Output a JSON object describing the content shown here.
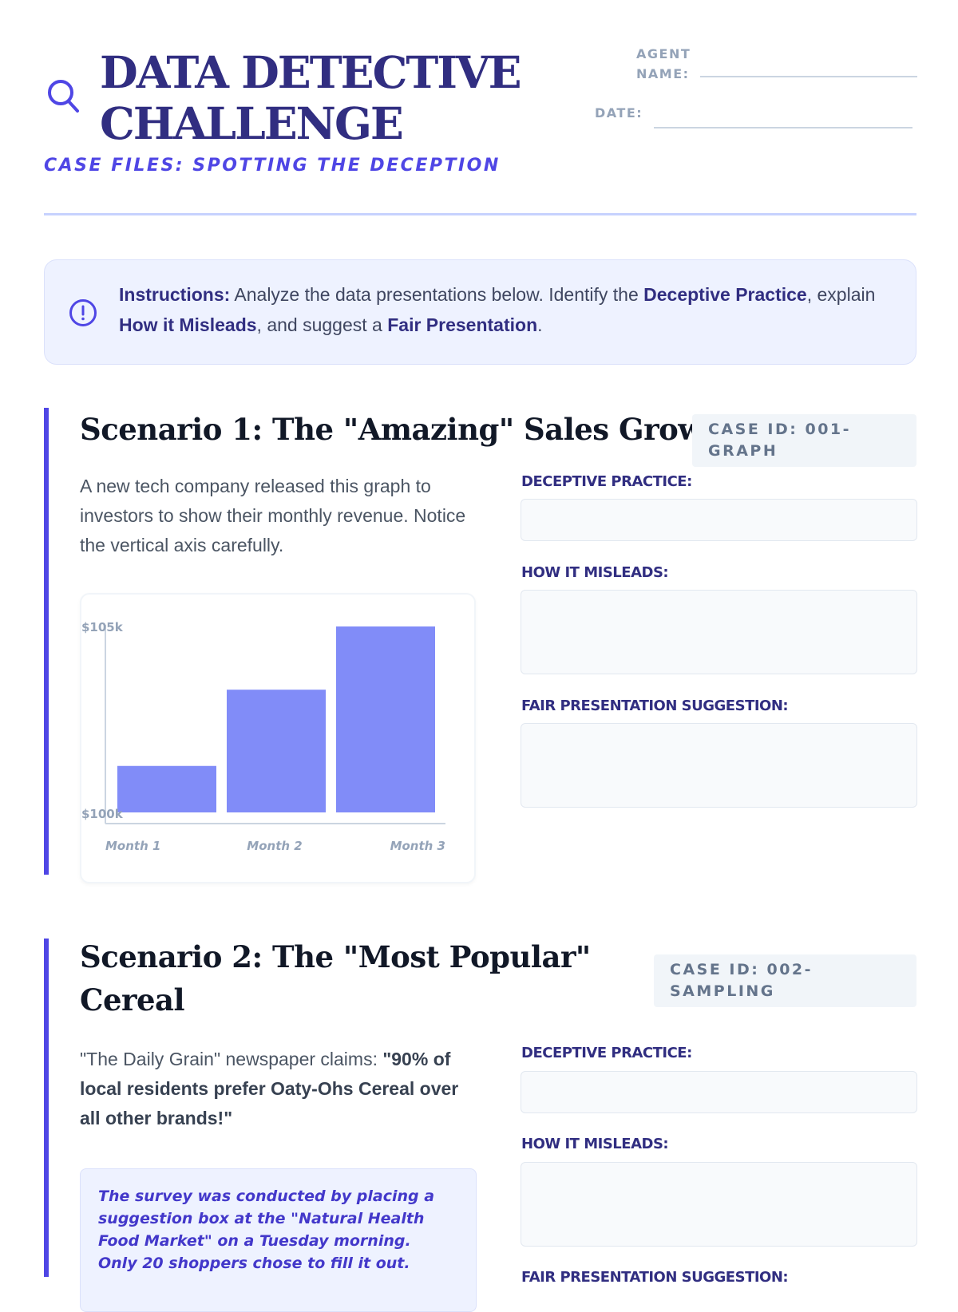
{
  "header": {
    "title": "DATA DETECTIVE CHALLENGE",
    "subtitle": "CASE FILES: SPOTTING THE DECEPTION",
    "agent_label": "AGENT NAME:",
    "date_label": "DATE:",
    "icon": "search-icon"
  },
  "instructions": {
    "icon": "alert-circle-icon",
    "lead": "Instructions:",
    "t1": " Analyze the data presentations below. Identify the ",
    "b1": "Deceptive Practice",
    "t2": ", explain ",
    "b2": "How it Misleads",
    "t3": ", and suggest a ",
    "b3": "Fair Presentation",
    "t4": "."
  },
  "scenarios": [
    {
      "title": "Scenario 1: The \"Amazing\" Sales Growth",
      "case_id": "CASE ID: 001-GRAPH",
      "description": "A new tech company released this graph to investors to show their monthly revenue. Notice the vertical axis carefully.",
      "fields": {
        "deceptive": "DECEPTIVE PRACTICE:",
        "misleads": "HOW IT MISLEADS:",
        "fair": "FAIR PRESENTATION SUGGESTION:"
      }
    },
    {
      "title": "Scenario 2: The \"Most Popular\" Cereal",
      "case_id": "CASE ID: 002-SAMPLING",
      "desc_plain": "\"The Daily Grain\" newspaper claims: ",
      "desc_bold": "\"90% of local residents prefer Oaty-Ohs Cereal over all other brands!\"",
      "note": "The survey was conducted by placing a suggestion box at the \"Natural Health Food Market\" on a Tuesday morning. Only 20 shoppers chose to fill it out.",
      "fields": {
        "deceptive": "DECEPTIVE PRACTICE:",
        "misleads": "HOW IT MISLEADS:",
        "fair": "FAIR PRESENTATION SUGGESTION:"
      }
    }
  ],
  "chart_data": {
    "type": "bar",
    "categories": [
      "Month 1",
      "Month 2",
      "Month 3"
    ],
    "values": [
      101.25,
      103.3,
      105
    ],
    "ylim": [
      100,
      105
    ],
    "ytick_labels": [
      "$100k",
      "$105k"
    ],
    "title": "",
    "xlabel": "",
    "ylabel": "",
    "bar_color": "#818cf8",
    "axis_color": "#cbd5e1",
    "grid": false
  },
  "colors": {
    "accent": "#4f46e5",
    "title": "#312e81"
  }
}
